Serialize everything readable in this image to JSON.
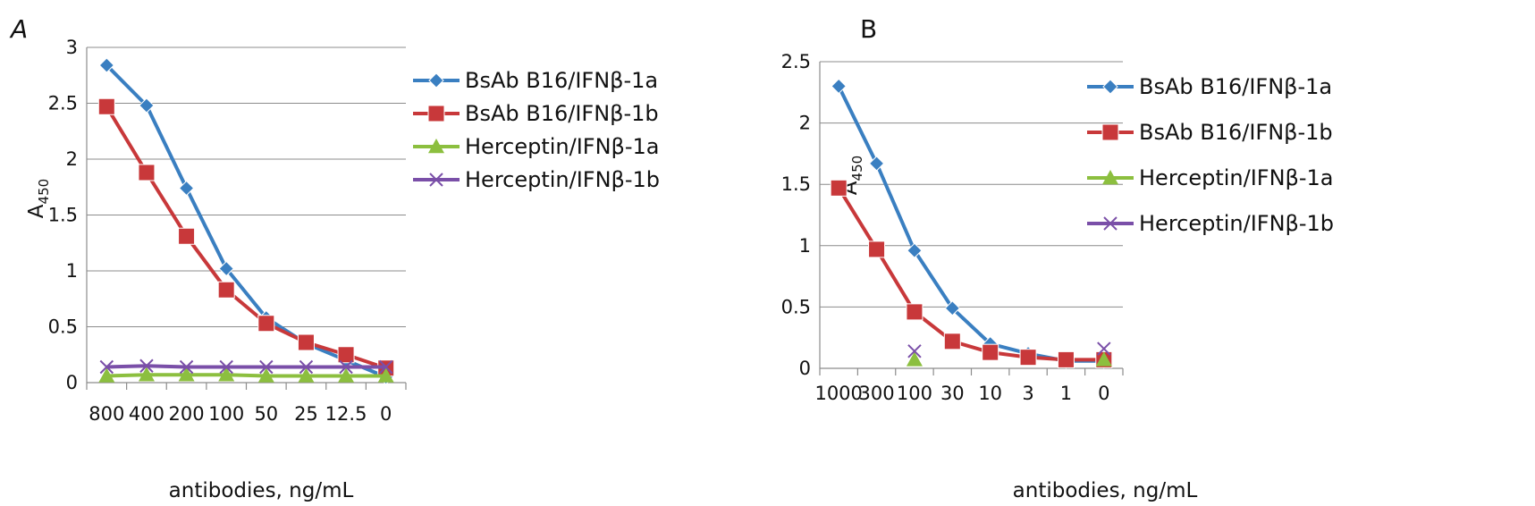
{
  "chart_data": [
    {
      "panel": "A",
      "type": "line",
      "categories": [
        "800",
        "400",
        "200",
        "100",
        "50",
        "25",
        "12.5",
        "0"
      ],
      "ylabel_main": "A",
      "ylabel_sub": "450",
      "xlabel": "antibodies, ng/mL",
      "ylim": [
        0,
        3
      ],
      "yticks": [
        "0",
        "0.5",
        "1",
        "1.5",
        "2",
        "2.5",
        "3"
      ],
      "grid": true,
      "legend_position": "right",
      "series": [
        {
          "name": "BsAb B16/IFNβ-1a",
          "color": "#3a7fc1",
          "marker": "diamond",
          "values": [
            2.84,
            2.48,
            1.74,
            1.02,
            0.58,
            0.35,
            0.2,
            0.05
          ]
        },
        {
          "name": "BsAb B16/IFNβ-1b",
          "color": "#c8383a",
          "marker": "square",
          "values": [
            2.47,
            1.88,
            1.31,
            0.83,
            0.53,
            0.36,
            0.25,
            0.13
          ]
        },
        {
          "name": "Herceptin/IFNβ-1a",
          "color": "#8cbf3f",
          "marker": "triangle",
          "values": [
            0.06,
            0.07,
            0.07,
            0.07,
            0.06,
            0.06,
            0.06,
            0.06
          ]
        },
        {
          "name": "Herceptin/IFNβ-1b",
          "color": "#7a4fa8",
          "marker": "x",
          "values": [
            0.14,
            0.15,
            0.14,
            0.14,
            0.14,
            0.14,
            0.14,
            0.14
          ]
        }
      ]
    },
    {
      "panel": "B",
      "type": "line",
      "categories": [
        "1000",
        "300",
        "100",
        "30",
        "10",
        "3",
        "1",
        "0"
      ],
      "ylabel_main": "A",
      "ylabel_sub": "450",
      "xlabel": "antibodies, ng/mL",
      "ylim": [
        0,
        2.5
      ],
      "yticks": [
        "0",
        "0.5",
        "1",
        "1.5",
        "2",
        "2.5"
      ],
      "grid": true,
      "legend_position": "right",
      "series": [
        {
          "name": "BsAb B16/IFNβ-1a",
          "color": "#3a7fc1",
          "marker": "diamond",
          "values": [
            2.3,
            1.67,
            0.96,
            0.49,
            0.2,
            0.12,
            0.06,
            0.06
          ]
        },
        {
          "name": "BsAb B16/IFNβ-1b",
          "color": "#c8383a",
          "marker": "square",
          "values": [
            1.47,
            0.97,
            0.46,
            0.22,
            0.13,
            0.09,
            0.07,
            0.07
          ]
        },
        {
          "name": "Herceptin/IFNβ-1a",
          "color": "#8cbf3f",
          "marker": "triangle",
          "values": [
            null,
            null,
            0.07,
            null,
            null,
            null,
            null,
            0.07
          ]
        },
        {
          "name": "Herceptin/IFNβ-1b",
          "color": "#7a4fa8",
          "marker": "x",
          "values": [
            null,
            null,
            0.14,
            null,
            null,
            null,
            null,
            0.16
          ]
        }
      ]
    }
  ]
}
